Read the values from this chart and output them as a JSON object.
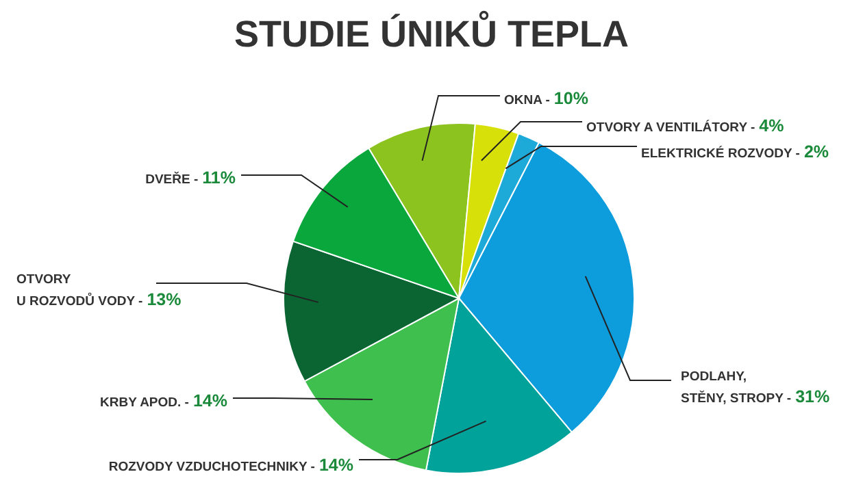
{
  "chart_data": {
    "type": "pie",
    "title": "STUDIE ÚNIKŮ TEPLA",
    "categories": [
      "OKNA -",
      "OTVORY A VENTILÁTORY -",
      "ELEKTRICKÉ ROZVODY -",
      "PODLAHY,\nSTĚNY, STROPY -",
      "ROZVODY VZDUCHOTECHNIKY -",
      "KRBY APOD. -",
      "OTVORY\nU ROZVODŮ VODY -",
      "DVEŘE -"
    ],
    "values": [
      10,
      4,
      2,
      31,
      14,
      14,
      13,
      11
    ],
    "value_labels": [
      "10%",
      "4%",
      "2%",
      "31%",
      "14%",
      "14%",
      "13%",
      "11%"
    ],
    "colors": [
      "#8cc31e",
      "#d8e00a",
      "#1eaad8",
      "#0d9cdc",
      "#01a29a",
      "#3fbf4e",
      "#0b6533",
      "#0aa83c"
    ]
  }
}
